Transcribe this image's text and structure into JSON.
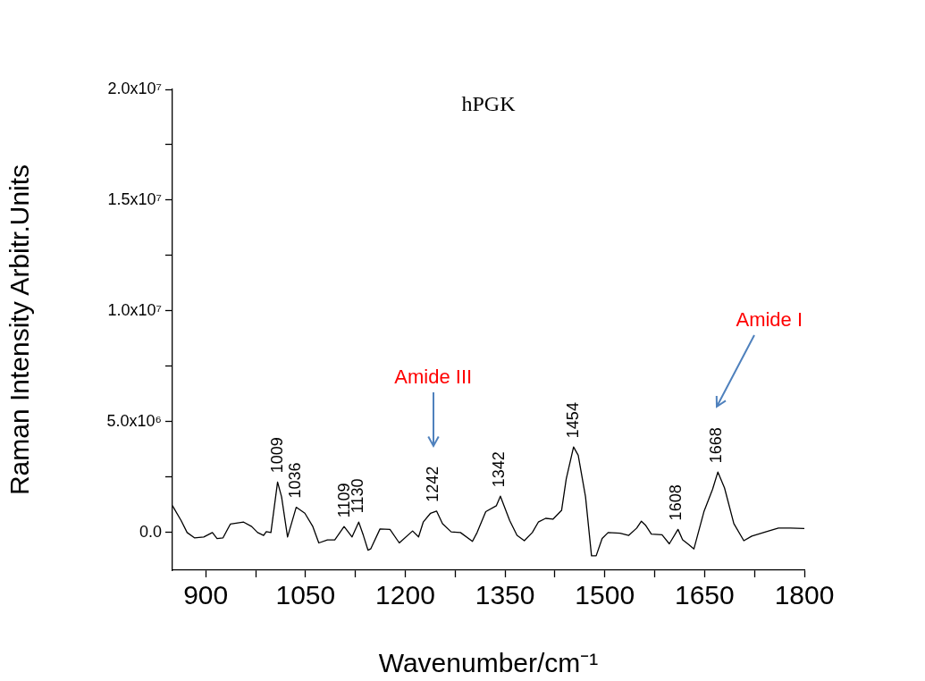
{
  "chart_data": {
    "type": "line",
    "title": "hPGK",
    "xlabel": "Wavenumber/cm⁻¹",
    "ylabel": "Raman Intensity Arbitr.Units",
    "xlim": [
      850,
      1800
    ],
    "xticks": [
      900,
      {
        "value": 975,
        "label": null
      },
      1050,
      {
        "value": 1125,
        "label": null
      },
      1200,
      {
        "value": 1275,
        "label": null
      },
      1350,
      {
        "value": 1425,
        "label": null
      },
      1500,
      {
        "value": 1575,
        "label": null
      },
      1650,
      {
        "value": 1725,
        "label": null
      },
      1800
    ],
    "ylim": [
      -1700000,
      20000000
    ],
    "yticks": [
      {
        "value": 0,
        "label": "0.0"
      },
      {
        "value": 2500000,
        "label": null
      },
      {
        "value": 5000000,
        "label": "5.0x10⁶"
      },
      {
        "value": 7500000,
        "label": null
      },
      {
        "value": 10000000,
        "label": "1.0x10⁷"
      },
      {
        "value": 12500000,
        "label": null
      },
      {
        "value": 15000000,
        "label": "1.5x10⁷"
      },
      {
        "value": 17500000,
        "label": null
      },
      {
        "value": 20000000,
        "label": "2.0x10⁷"
      }
    ],
    "grid": false,
    "legend": false,
    "marker": "none",
    "line_style": "solid",
    "series": [
      {
        "color": "#000000",
        "x": [
          850,
          863,
          872,
          883,
          897,
          910,
          917,
          926,
          937,
          957,
          969,
          978,
          987,
          991,
          998,
          1008,
          1014,
          1023,
          1036,
          1049,
          1061,
          1070,
          1083,
          1094,
          1108,
          1120,
          1130,
          1137,
          1144,
          1148,
          1162,
          1177,
          1191,
          1211,
          1220,
          1227,
          1238,
          1247,
          1256,
          1269,
          1283,
          1301,
          1308,
          1321,
          1337,
          1343,
          1357,
          1368,
          1379,
          1391,
          1400,
          1411,
          1422,
          1435,
          1442,
          1453,
          1460,
          1471,
          1480,
          1487,
          1496,
          1505,
          1523,
          1536,
          1548,
          1555,
          1561,
          1570,
          1586,
          1597,
          1610,
          1617,
          1626,
          1634,
          1649,
          1662,
          1670,
          1680,
          1694,
          1709,
          1721,
          1743,
          1761,
          1779,
          1800
        ],
        "values": [
          1210000,
          540000,
          0,
          -240000,
          -200000,
          0,
          -270000,
          -240000,
          380000,
          470000,
          270000,
          0,
          -130000,
          40000,
          0,
          2280000,
          1610000,
          -200000,
          1140000,
          870000,
          270000,
          -470000,
          -330000,
          -330000,
          270000,
          -200000,
          470000,
          -130000,
          -800000,
          -740000,
          160000,
          140000,
          -470000,
          70000,
          -200000,
          470000,
          870000,
          970000,
          400000,
          30000,
          0,
          -400000,
          0,
          940000,
          1210000,
          1640000,
          540000,
          -130000,
          -370000,
          0,
          470000,
          640000,
          600000,
          1000000,
          2420000,
          3860000,
          3490000,
          1610000,
          -1050000,
          -1050000,
          -270000,
          0,
          -30000,
          -130000,
          200000,
          510000,
          340000,
          -70000,
          -100000,
          -510000,
          140000,
          -330000,
          -540000,
          -740000,
          940000,
          1950000,
          2730000,
          2010000,
          400000,
          -370000,
          -160000,
          40000,
          200000,
          200000,
          180000
        ]
      }
    ],
    "annotations": [
      {
        "text": "1009",
        "x": 1009,
        "y": 2280000
      },
      {
        "text": "1036",
        "x": 1036,
        "y": 1140000
      },
      {
        "text": "1109",
        "x": 1109,
        "y": 270000
      },
      {
        "text": "1130",
        "x": 1130,
        "y": 470000
      },
      {
        "text": "1242",
        "x": 1242,
        "y": 970000
      },
      {
        "text": "1342",
        "x": 1342,
        "y": 1640000
      },
      {
        "text": "1454",
        "x": 1454,
        "y": 3860000
      },
      {
        "text": "1608",
        "x": 1608,
        "y": 140000
      },
      {
        "text": "1668",
        "x": 1668,
        "y": 2730000
      },
      "Amide III",
      "Amide I"
    ]
  }
}
